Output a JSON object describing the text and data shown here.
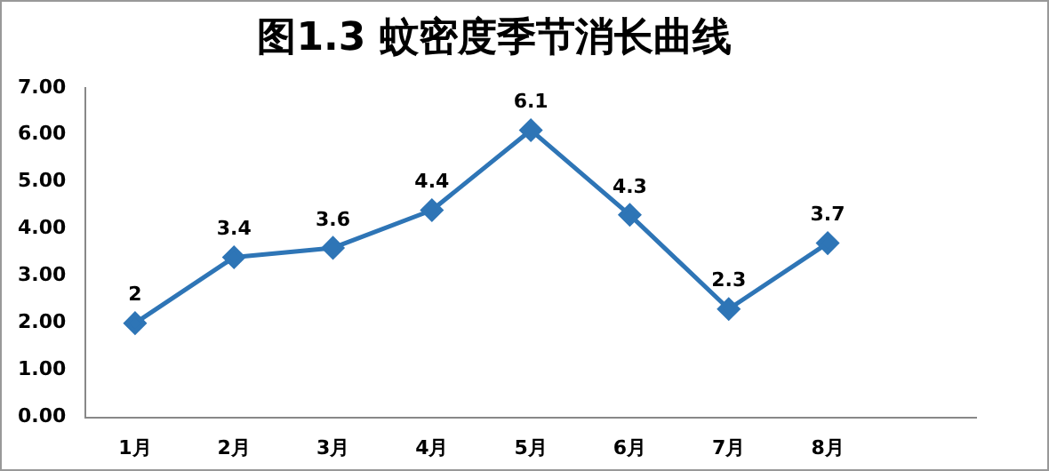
{
  "chart_data": {
    "type": "line",
    "title": "图1.3 蚊密度季节消长曲线",
    "categories": [
      "1月",
      "2月",
      "3月",
      "4月",
      "5月",
      "6月",
      "7月",
      "8月",
      null
    ],
    "values": [
      2,
      3.4,
      3.6,
      4.4,
      6.1,
      4.3,
      2.3,
      3.7,
      null
    ],
    "color": "#2e75b6",
    "marker": "diamond",
    "data_labels": true,
    "grid": false,
    "legend": false,
    "ylim": [
      0,
      7
    ],
    "yticks": [
      {
        "value": 0,
        "label": "0.00"
      },
      {
        "value": 1,
        "label": "1.00"
      },
      {
        "value": 2,
        "label": "2.00"
      },
      {
        "value": 3,
        "label": "3.00"
      },
      {
        "value": 4,
        "label": "4.00"
      },
      {
        "value": 5,
        "label": "5.00"
      },
      {
        "value": 6,
        "label": "6.00"
      },
      {
        "value": 7,
        "label": "7.00"
      }
    ]
  }
}
